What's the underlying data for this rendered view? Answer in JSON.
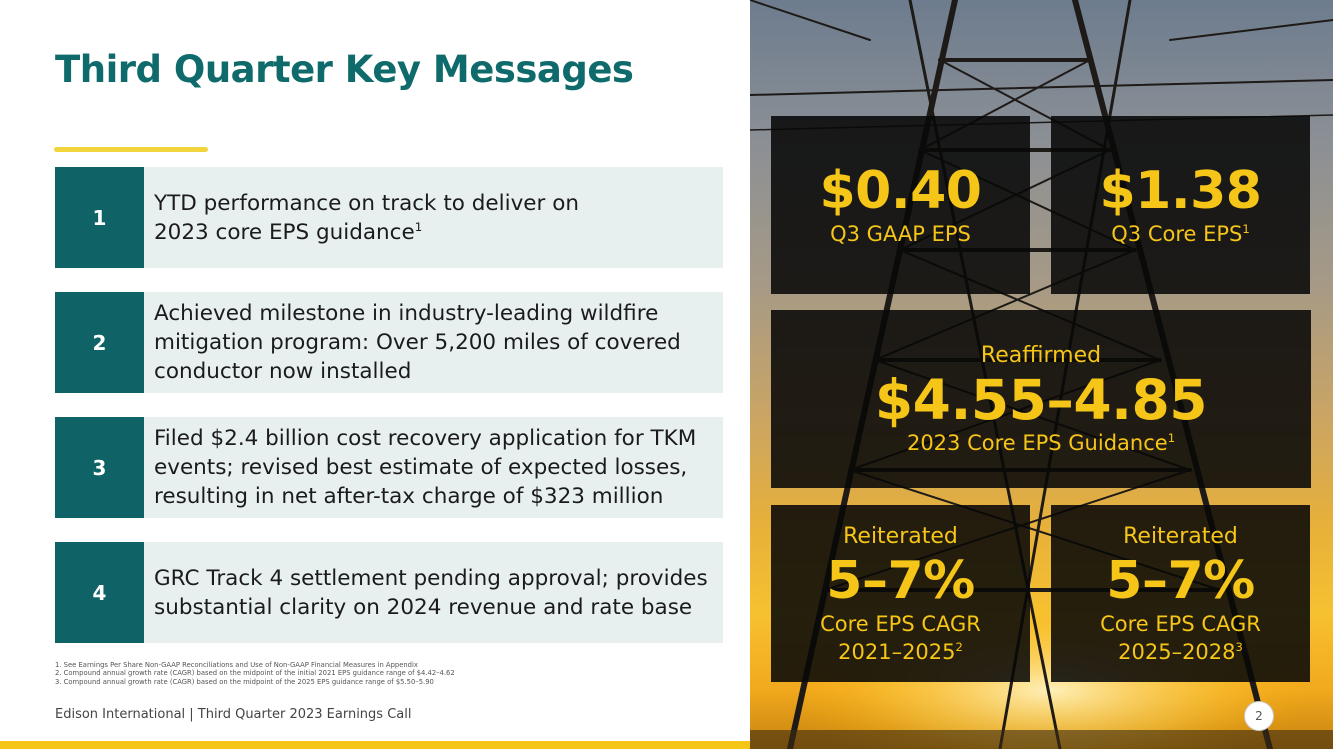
{
  "slide": {
    "title": "Third Quarter Key Messages",
    "messages": [
      {
        "number": "1",
        "line1": "YTD performance on track to deliver on",
        "line2": "2023 core EPS guidance",
        "note": "1"
      },
      {
        "number": "2",
        "line1": "Achieved milestone in industry-leading wildfire",
        "line2": "mitigation program: Over 5,200 miles of covered",
        "line3": "conductor now installed"
      },
      {
        "number": "3",
        "line1": "Filed $2.4 billion cost recovery application for TKM",
        "line2": "events; revised best estimate of expected losses,",
        "line3": "resulting in net after-tax charge of $323 million"
      },
      {
        "number": "4",
        "line1": "GRC Track 4 settlement pending approval; provides",
        "line2": "substantial clarity on 2024 revenue and rate base"
      }
    ],
    "footnotes": [
      "1.  See Earnings Per Share Non-GAAP Reconciliations and Use of Non-GAAP Financial Measures in Appendix",
      "2.  Compound annual growth rate (CAGR) based on the midpoint of the initial 2021 EPS guidance range of $4.42–4.62",
      "3.  Compound annual growth rate (CAGR) based on the midpoint of the 2025 EPS guidance range of $5.50–5.90"
    ],
    "footer": "Edison International |  Third Quarter 2023 Earnings Call",
    "page_number": "2"
  },
  "stats": {
    "gaap": {
      "value": "$0.40",
      "label": "Q3 GAAP EPS"
    },
    "core": {
      "value": "$1.38",
      "label": "Q3 Core EPS",
      "note": "1"
    },
    "guidance": {
      "prefix": "Reaffirmed",
      "value": "$4.55–4.85",
      "label": "2023 Core EPS Guidance",
      "note": "1"
    },
    "cagr1": {
      "prefix": "Reiterated",
      "value": "5–7%",
      "label": "Core EPS CAGR",
      "period": "2021–2025",
      "note": "2"
    },
    "cagr2": {
      "prefix": "Reiterated",
      "value": "5–7%",
      "label": "Core EPS CAGR",
      "period": "2025–2028",
      "note": "3"
    }
  },
  "colors": {
    "title": "#0f6b6b",
    "number_box": "#0f6366",
    "message_bg": "#e7f0ef",
    "accent_yellow": "#f5c518",
    "stat_box": "#080808"
  }
}
